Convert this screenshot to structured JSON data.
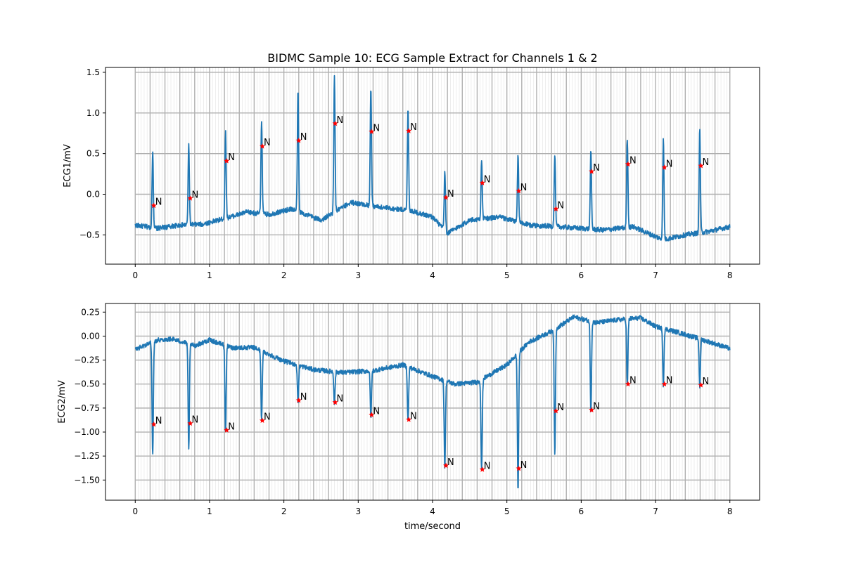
{
  "chart_data": {
    "title": "BIDMC Sample 10: ECG Sample Extract for Channels 1 & 2",
    "xlabel": "time/second",
    "colors": {
      "signal": "#1f77b4",
      "marker": "#ff0000",
      "grid_major": "#b0b0b0",
      "grid_minor": "#e6e6e6"
    },
    "panels": [
      {
        "type": "line",
        "ylabel": "ECG1/mV",
        "xlim": [
          -0.4,
          8.4
        ],
        "ylim": [
          -0.86,
          1.56
        ],
        "xticks": [
          0,
          1,
          2,
          3,
          4,
          5,
          6,
          7,
          8
        ],
        "xtick_labels": [
          "0",
          "1",
          "2",
          "3",
          "4",
          "5",
          "6",
          "7",
          "8"
        ],
        "yticks": [
          -0.5,
          0.0,
          0.5,
          1.0,
          1.5
        ],
        "ytick_labels": [
          "−0.5",
          "0.0",
          "0.5",
          "1.0",
          "1.5"
        ],
        "grid": true,
        "baseline": [
          [
            0,
            -0.38
          ],
          [
            0.3,
            -0.42
          ],
          [
            0.6,
            -0.38
          ],
          [
            0.9,
            -0.37
          ],
          [
            1.2,
            -0.3
          ],
          [
            1.5,
            -0.22
          ],
          [
            1.8,
            -0.25
          ],
          [
            2.1,
            -0.18
          ],
          [
            2.5,
            -0.32
          ],
          [
            2.9,
            -0.1
          ],
          [
            3.3,
            -0.16
          ],
          [
            3.7,
            -0.2
          ],
          [
            4.0,
            -0.28
          ],
          [
            4.2,
            -0.48
          ],
          [
            4.5,
            -0.32
          ],
          [
            4.9,
            -0.28
          ],
          [
            5.3,
            -0.38
          ],
          [
            5.7,
            -0.4
          ],
          [
            6.0,
            -0.42
          ],
          [
            6.3,
            -0.44
          ],
          [
            6.7,
            -0.4
          ],
          [
            7.1,
            -0.56
          ],
          [
            7.4,
            -0.5
          ],
          [
            7.7,
            -0.46
          ],
          [
            8.0,
            -0.4
          ]
        ],
        "peaks": [
          [
            0.235,
            0.53
          ],
          [
            0.72,
            0.61
          ],
          [
            1.215,
            0.76
          ],
          [
            1.7,
            0.91
          ],
          [
            2.19,
            1.26
          ],
          [
            2.68,
            1.44
          ],
          [
            3.17,
            1.31
          ],
          [
            3.67,
            1.06
          ],
          [
            4.165,
            0.28
          ],
          [
            4.66,
            0.39
          ],
          [
            5.15,
            0.47
          ],
          [
            5.645,
            0.49
          ],
          [
            6.13,
            0.52
          ],
          [
            6.62,
            0.69
          ],
          [
            7.105,
            0.67
          ],
          [
            7.595,
            0.81
          ]
        ],
        "annotations": [
          {
            "x": 0.25,
            "y": -0.14,
            "label": "N"
          },
          {
            "x": 0.74,
            "y": -0.05,
            "label": "N"
          },
          {
            "x": 1.23,
            "y": 0.41,
            "label": "N"
          },
          {
            "x": 1.71,
            "y": 0.59,
            "label": "N"
          },
          {
            "x": 2.2,
            "y": 0.66,
            "label": "N"
          },
          {
            "x": 2.69,
            "y": 0.87,
            "label": "N"
          },
          {
            "x": 3.18,
            "y": 0.77,
            "label": "N"
          },
          {
            "x": 3.68,
            "y": 0.78,
            "label": "N"
          },
          {
            "x": 4.18,
            "y": -0.04,
            "label": "N"
          },
          {
            "x": 4.67,
            "y": 0.14,
            "label": "N"
          },
          {
            "x": 5.16,
            "y": 0.04,
            "label": "N"
          },
          {
            "x": 5.66,
            "y": -0.18,
            "label": "N"
          },
          {
            "x": 6.14,
            "y": 0.28,
            "label": "N"
          },
          {
            "x": 6.63,
            "y": 0.37,
            "label": "N"
          },
          {
            "x": 7.12,
            "y": 0.33,
            "label": "N"
          },
          {
            "x": 7.61,
            "y": 0.35,
            "label": "N"
          }
        ]
      },
      {
        "type": "line",
        "ylabel": "ECG2/mV",
        "xlim": [
          -0.4,
          8.4
        ],
        "ylim": [
          -1.71,
          0.34
        ],
        "xticks": [
          0,
          1,
          2,
          3,
          4,
          5,
          6,
          7,
          8
        ],
        "xtick_labels": [
          "0",
          "1",
          "2",
          "3",
          "4",
          "5",
          "6",
          "7",
          "8"
        ],
        "yticks": [
          -1.5,
          -1.25,
          -1.0,
          -0.75,
          -0.5,
          -0.25,
          0.0,
          0.25
        ],
        "ytick_labels": [
          "−1.50",
          "−1.25",
          "−1.00",
          "−0.75",
          "−0.50",
          "−0.25",
          "0.00",
          "0.25"
        ],
        "grid": true,
        "baseline": [
          [
            0,
            -0.14
          ],
          [
            0.3,
            -0.04
          ],
          [
            0.5,
            -0.03
          ],
          [
            0.8,
            -0.1
          ],
          [
            1.0,
            -0.04
          ],
          [
            1.3,
            -0.12
          ],
          [
            1.6,
            -0.12
          ],
          [
            2.0,
            -0.26
          ],
          [
            2.4,
            -0.35
          ],
          [
            2.8,
            -0.38
          ],
          [
            3.2,
            -0.36
          ],
          [
            3.6,
            -0.3
          ],
          [
            4.0,
            -0.42
          ],
          [
            4.3,
            -0.5
          ],
          [
            4.6,
            -0.48
          ],
          [
            5.0,
            -0.3
          ],
          [
            5.3,
            -0.06
          ],
          [
            5.6,
            0.05
          ],
          [
            5.9,
            0.2
          ],
          [
            6.2,
            0.14
          ],
          [
            6.5,
            0.17
          ],
          [
            6.8,
            0.19
          ],
          [
            7.0,
            0.1
          ],
          [
            7.3,
            0.04
          ],
          [
            7.6,
            -0.03
          ],
          [
            8.0,
            -0.13
          ]
        ],
        "peaks": [
          [
            0.235,
            -1.26
          ],
          [
            0.72,
            -1.19
          ],
          [
            1.215,
            -1.0
          ],
          [
            1.7,
            -0.88
          ],
          [
            2.19,
            -0.69
          ],
          [
            2.68,
            -0.7
          ],
          [
            3.17,
            -0.84
          ],
          [
            3.67,
            -0.89
          ],
          [
            4.165,
            -1.37
          ],
          [
            4.66,
            -1.4
          ],
          [
            5.15,
            -1.61
          ],
          [
            5.645,
            -1.25
          ],
          [
            6.13,
            -0.79
          ],
          [
            6.62,
            -0.52
          ],
          [
            7.105,
            -0.51
          ],
          [
            7.595,
            -0.53
          ]
        ],
        "annotations": [
          {
            "x": 0.25,
            "y": -0.92,
            "label": "N"
          },
          {
            "x": 0.74,
            "y": -0.91,
            "label": "N"
          },
          {
            "x": 1.23,
            "y": -0.98,
            "label": "N"
          },
          {
            "x": 1.71,
            "y": -0.88,
            "label": "N"
          },
          {
            "x": 2.2,
            "y": -0.67,
            "label": "N"
          },
          {
            "x": 2.69,
            "y": -0.69,
            "label": "N"
          },
          {
            "x": 3.18,
            "y": -0.82,
            "label": "N"
          },
          {
            "x": 3.68,
            "y": -0.87,
            "label": "N"
          },
          {
            "x": 4.18,
            "y": -1.35,
            "label": "N"
          },
          {
            "x": 4.67,
            "y": -1.39,
            "label": "N"
          },
          {
            "x": 5.16,
            "y": -1.38,
            "label": "N"
          },
          {
            "x": 5.66,
            "y": -0.78,
            "label": "N"
          },
          {
            "x": 6.14,
            "y": -0.77,
            "label": "N"
          },
          {
            "x": 6.63,
            "y": -0.5,
            "label": "N"
          },
          {
            "x": 7.12,
            "y": -0.5,
            "label": "N"
          },
          {
            "x": 7.61,
            "y": -0.51,
            "label": "N"
          }
        ]
      }
    ]
  }
}
